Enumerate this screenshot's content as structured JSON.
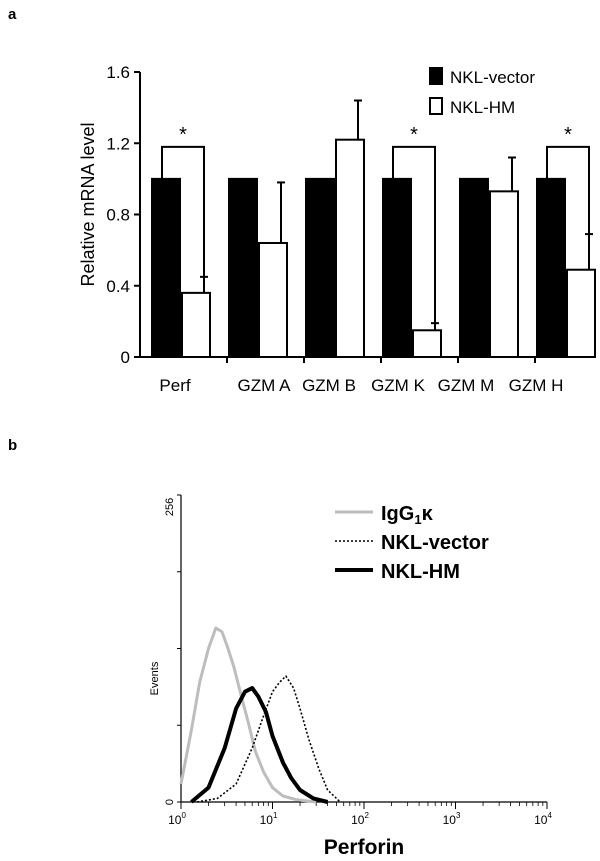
{
  "panel_a_label": "a",
  "panel_b_label": "b",
  "chart_data": [
    {
      "type": "bar",
      "ylabel": "Relative mRNA  level",
      "ylim": [
        0,
        1.6
      ],
      "yticks": [
        "0",
        "0.4",
        "0.8",
        "1.2",
        "1.6"
      ],
      "yticks_values": [
        0,
        0.4,
        0.8,
        1.2,
        1.6
      ],
      "categories": [
        "Perf",
        "GZM  A",
        "GZM  B",
        "GZM  K",
        "GZM  M",
        "GZM  H"
      ],
      "series": [
        {
          "name": "NKL-vector",
          "color": "#000000",
          "values": [
            1.0,
            1.0,
            1.0,
            1.0,
            1.0,
            1.0
          ],
          "errors": [
            0,
            0,
            0,
            0,
            0,
            0
          ]
        },
        {
          "name": "NKL-HM",
          "color": "#ffffff",
          "values": [
            0.36,
            0.64,
            1.22,
            0.15,
            0.93,
            0.49
          ],
          "errors": [
            0.09,
            0.34,
            0.22,
            0.04,
            0.19,
            0.2
          ]
        }
      ],
      "significance": [
        {
          "category": "Perf",
          "label": "*"
        },
        {
          "category": "GZM  K",
          "label": "*"
        },
        {
          "category": "GZM  H",
          "label": "*"
        }
      ],
      "legend_position": "top-right",
      "grid": false
    },
    {
      "type": "line",
      "xlabel": "Perforin",
      "ylabel": "Events",
      "xscale": "log",
      "xlim": [
        1,
        10000
      ],
      "ylim": [
        0,
        256
      ],
      "xticks": [
        "10",
        "10",
        "10",
        "10",
        "10"
      ],
      "xticks_exp": [
        "0",
        "1",
        "2",
        "3",
        "4"
      ],
      "yticks": [
        "0",
        "256"
      ],
      "legend_position": "top-right",
      "legend": [
        {
          "label": "IgG",
          "sub": "1",
          "suffix": "κ",
          "style": "gray-solid"
        },
        {
          "label": "NKL-vector",
          "style": "dotted"
        },
        {
          "label": "NKL-HM",
          "style": "bold-solid"
        }
      ],
      "series": [
        {
          "name": "IgG1κ",
          "color": "#bdbdbd",
          "style": "gray-solid",
          "x": [
            1,
            1.3,
            1.6,
            2,
            2.4,
            2.8,
            3.2,
            3.8,
            4.5,
            5.5,
            6.5,
            8,
            10,
            13,
            18,
            30
          ],
          "y": [
            15,
            60,
            100,
            128,
            145,
            142,
            130,
            112,
            90,
            65,
            42,
            25,
            12,
            5,
            2,
            0
          ]
        },
        {
          "name": "NKL-vector",
          "color": "#000000",
          "style": "dotted",
          "x": [
            1.5,
            2.5,
            4,
            6,
            8,
            10,
            12,
            14,
            17,
            20,
            25,
            32,
            40,
            55
          ],
          "y": [
            0,
            3,
            15,
            45,
            72,
            92,
            100,
            105,
            95,
            78,
            52,
            28,
            10,
            0
          ]
        },
        {
          "name": "NKL-HM",
          "color": "#000000",
          "style": "bold-solid",
          "x": [
            1.3,
            2,
            3,
            4,
            5,
            6,
            7,
            8.5,
            10,
            13,
            16,
            20,
            28,
            40
          ],
          "y": [
            0,
            12,
            45,
            78,
            92,
            95,
            88,
            75,
            55,
            33,
            20,
            10,
            3,
            0
          ]
        }
      ]
    }
  ]
}
